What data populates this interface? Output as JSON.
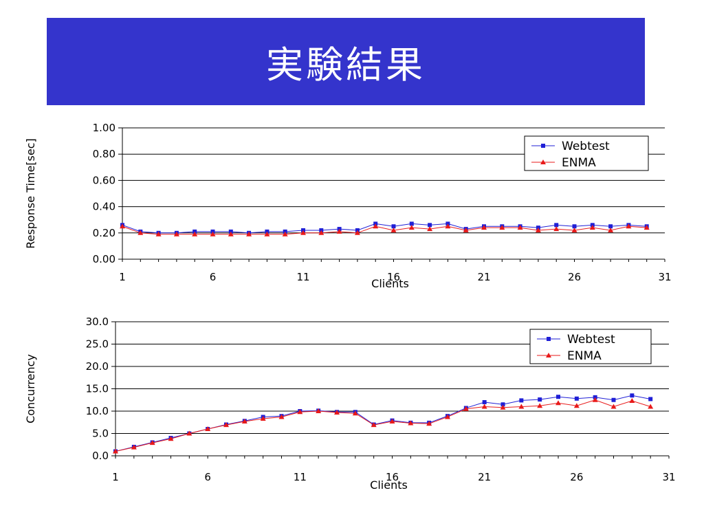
{
  "slide": {
    "title": "実験結果"
  },
  "colors": {
    "banner": "#3434cc",
    "webtest": "#1f1fd6",
    "enma": "#e81a1a"
  },
  "chart_data": [
    {
      "type": "line",
      "title": "",
      "xlabel": "Clients",
      "ylabel": "Response Time[sec]",
      "xlim": [
        1,
        31
      ],
      "ylim": [
        0,
        1
      ],
      "xticks": [
        "1",
        "6",
        "11",
        "16",
        "21",
        "26",
        "31"
      ],
      "yticks": [
        "0.00",
        "0.20",
        "0.40",
        "0.60",
        "0.80",
        "1.00"
      ],
      "grid": "horizontal",
      "legend": "top-right",
      "x": [
        1,
        2,
        3,
        4,
        5,
        6,
        7,
        8,
        9,
        10,
        11,
        12,
        13,
        14,
        15,
        16,
        17,
        18,
        19,
        20,
        21,
        22,
        23,
        24,
        25,
        26,
        27,
        28,
        29,
        30
      ],
      "series": [
        {
          "name": "Webtest",
          "marker": "square",
          "values": [
            0.26,
            0.21,
            0.2,
            0.2,
            0.21,
            0.21,
            0.21,
            0.2,
            0.21,
            0.21,
            0.22,
            0.22,
            0.23,
            0.22,
            0.27,
            0.25,
            0.27,
            0.26,
            0.27,
            0.23,
            0.25,
            0.25,
            0.25,
            0.24,
            0.26,
            0.25,
            0.26,
            0.25,
            0.26,
            0.25
          ]
        },
        {
          "name": "ENMA",
          "marker": "triangle",
          "values": [
            0.25,
            0.2,
            0.19,
            0.19,
            0.19,
            0.19,
            0.19,
            0.19,
            0.19,
            0.19,
            0.2,
            0.2,
            0.21,
            0.2,
            0.25,
            0.22,
            0.24,
            0.23,
            0.25,
            0.22,
            0.24,
            0.24,
            0.24,
            0.22,
            0.23,
            0.22,
            0.24,
            0.22,
            0.25,
            0.24
          ]
        }
      ]
    },
    {
      "type": "line",
      "title": "",
      "xlabel": "Clients",
      "ylabel": "Concurrency",
      "xlim": [
        1,
        31
      ],
      "ylim": [
        0,
        30
      ],
      "xticks": [
        "1",
        "6",
        "11",
        "16",
        "21",
        "26",
        "31"
      ],
      "yticks": [
        "0.0",
        "5.0",
        "10.0",
        "15.0",
        "20.0",
        "25.0",
        "30.0"
      ],
      "grid": "horizontal",
      "legend": "top-right",
      "x": [
        1,
        2,
        3,
        4,
        5,
        6,
        7,
        8,
        9,
        10,
        11,
        12,
        13,
        14,
        15,
        16,
        17,
        18,
        19,
        20,
        21,
        22,
        23,
        24,
        25,
        26,
        27,
        28,
        29,
        30
      ],
      "series": [
        {
          "name": "Webtest",
          "marker": "square",
          "values": [
            1.0,
            2.0,
            3.0,
            4.0,
            5.0,
            6.0,
            7.0,
            7.8,
            8.7,
            8.9,
            10.0,
            10.1,
            9.8,
            9.8,
            7.0,
            7.9,
            7.4,
            7.4,
            8.9,
            10.7,
            12.0,
            11.5,
            12.4,
            12.6,
            13.2,
            12.8,
            13.1,
            12.5,
            13.5,
            12.7
          ]
        },
        {
          "name": "ENMA",
          "marker": "triangle",
          "values": [
            1.0,
            1.9,
            2.9,
            3.8,
            5.0,
            6.0,
            6.9,
            7.7,
            8.3,
            8.7,
            9.8,
            10.0,
            9.7,
            9.5,
            6.9,
            7.7,
            7.3,
            7.2,
            8.7,
            10.5,
            11.0,
            10.8,
            11.0,
            11.2,
            11.8,
            11.2,
            12.5,
            11.0,
            12.3,
            11.0
          ]
        }
      ]
    }
  ]
}
